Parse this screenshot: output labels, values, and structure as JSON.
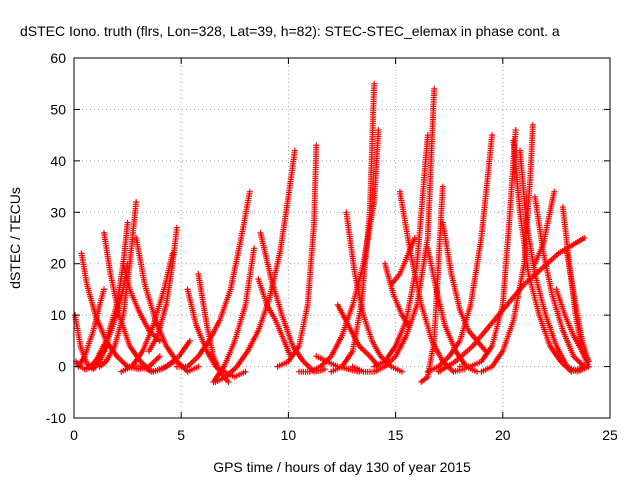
{
  "chart_data": {
    "type": "scatter",
    "title": "dSTEC Iono. truth (flrs, Lon=328, Lat=39, h=82): STEC-STEC_elemax in phase cont. a",
    "xlabel": "GPS time / hours of day 130 of year 2015",
    "ylabel": "dSTEC  / TECUs",
    "xlim": [
      0,
      25
    ],
    "ylim": [
      -10,
      60
    ],
    "xticks": [
      0,
      5,
      10,
      15,
      20,
      25
    ],
    "yticks": [
      -10,
      0,
      10,
      20,
      30,
      40,
      50,
      60
    ],
    "grid": true,
    "legend": "none",
    "marker": "plus",
    "color": "#ff0000",
    "series": [
      {
        "x": [
          0.05,
          0.3,
          0.6,
          0.9,
          1.2,
          1.5
        ],
        "y": [
          10,
          4,
          0.5,
          -0.5,
          1,
          4
        ]
      },
      {
        "x": [
          0.1,
          0.2,
          0.5,
          0.9,
          1.4,
          1.9,
          2.3,
          2.5
        ],
        "y": [
          1,
          0.3,
          -0.5,
          0,
          3,
          9,
          15,
          20
        ]
      },
      {
        "x": [
          0.35,
          0.6,
          1.0,
          1.5,
          2.0,
          2.5,
          3.0,
          3.5,
          4.0
        ],
        "y": [
          22,
          16,
          10,
          5,
          2,
          0,
          -0.5,
          0,
          2
        ]
      },
      {
        "x": [
          0.2,
          0.5,
          0.9,
          1.2,
          1.4
        ],
        "y": [
          0,
          2,
          7,
          12,
          15
        ]
      },
      {
        "x": [
          1.4,
          1.7,
          2.1,
          2.6,
          3.1,
          3.6,
          4.1,
          4.7
        ],
        "y": [
          26,
          18,
          10,
          4,
          1,
          -1,
          -0.5,
          1
        ]
      },
      {
        "x": [
          0.6,
          1.0,
          1.5,
          2.0,
          2.3,
          2.5
        ],
        "y": [
          -0.5,
          1,
          5,
          12,
          20,
          28
        ]
      },
      {
        "x": [
          1.2,
          1.5,
          1.9,
          2.3,
          2.6,
          2.9
        ],
        "y": [
          0,
          1,
          4,
          10,
          20,
          32
        ]
      },
      {
        "x": [
          2.9,
          3.3,
          3.8,
          4.3,
          4.8,
          5.3,
          5.8
        ],
        "y": [
          25,
          16,
          9,
          4,
          1,
          -1,
          0
        ]
      },
      {
        "x": [
          2.2,
          2.7,
          3.2,
          3.7,
          4.2,
          4.6
        ],
        "y": [
          -1,
          0,
          3,
          8,
          15,
          22
        ]
      },
      {
        "x": [
          2.6,
          3.1,
          3.7,
          4.3,
          4.9,
          5.4
        ],
        "y": [
          0,
          0,
          -1,
          0,
          2,
          5
        ]
      },
      {
        "x": [
          3.5,
          3.9,
          4.3,
          4.6,
          4.8
        ],
        "y": [
          3,
          6,
          12,
          20,
          27
        ]
      },
      {
        "x": [
          2.3,
          2.6,
          3.0,
          3.5,
          4.0
        ],
        "y": [
          20,
          15,
          11,
          7,
          5
        ]
      },
      {
        "x": [
          5.3,
          5.7,
          6.2,
          6.6,
          7.0,
          7.5,
          8.0
        ],
        "y": [
          15,
          8,
          3,
          0,
          -1,
          -2,
          -1
        ]
      },
      {
        "x": [
          5.8,
          6.2,
          6.5,
          6.8,
          7.2
        ],
        "y": [
          18,
          8,
          2,
          -1,
          -3
        ]
      },
      {
        "x": [
          4.8,
          5.3,
          5.8,
          6.3,
          6.8,
          7.3,
          7.8,
          8.2
        ],
        "y": [
          0,
          0,
          2,
          5,
          9,
          15,
          25,
          34
        ]
      },
      {
        "x": [
          6.6,
          7.1,
          7.6,
          8.1,
          8.6,
          9.1,
          9.6,
          10.0,
          10.3
        ],
        "y": [
          -3,
          -2,
          0,
          3,
          7,
          13,
          22,
          33,
          42
        ]
      },
      {
        "x": [
          6.5,
          7.0,
          7.5,
          8.0,
          8.4
        ],
        "y": [
          -3,
          0,
          5,
          12,
          23
        ]
      },
      {
        "x": [
          8.7,
          9.2,
          9.7,
          10.2,
          10.7,
          11.2,
          11.7
        ],
        "y": [
          26,
          17,
          10,
          4,
          1,
          -1,
          -0.5
        ]
      },
      {
        "x": [
          8.6,
          9.0,
          9.4,
          9.8,
          10.1
        ],
        "y": [
          17,
          12,
          9,
          5,
          2
        ]
      },
      {
        "x": [
          9.5,
          10.0,
          10.5,
          10.9,
          11.2,
          11.3
        ],
        "y": [
          0,
          1,
          4,
          12,
          28,
          43
        ]
      },
      {
        "x": [
          11.3,
          11.8,
          12.3,
          12.8,
          13.3
        ],
        "y": [
          2,
          1,
          0,
          -0.5,
          -1
        ]
      },
      {
        "x": [
          10.5,
          11.0,
          11.5,
          12.0,
          12.5,
          13.0,
          13.5,
          14.0,
          14.2
        ],
        "y": [
          -1,
          -1,
          0,
          2,
          6,
          12,
          20,
          32,
          46
        ]
      },
      {
        "x": [
          12.0,
          12.5,
          13.0,
          13.4,
          13.8,
          14.0
        ],
        "y": [
          -1,
          0,
          3,
          12,
          30,
          55
        ]
      },
      {
        "x": [
          12.7,
          13.1,
          13.5,
          13.9,
          14.3,
          14.8,
          15.3
        ],
        "y": [
          30,
          18,
          10,
          5,
          2,
          0,
          -1
        ]
      },
      {
        "x": [
          12.3,
          12.8,
          13.3,
          13.8,
          14.2
        ],
        "y": [
          12,
          8,
          4,
          2,
          0
        ]
      },
      {
        "x": [
          13.0,
          13.5,
          14.0,
          14.5,
          15.0,
          15.5,
          16.0,
          16.5,
          16.8
        ],
        "y": [
          0,
          -1,
          -1,
          0,
          2,
          6,
          12,
          25,
          54
        ]
      },
      {
        "x": [
          14.0,
          14.5,
          15.0,
          15.5,
          16.0,
          16.3,
          16.5
        ],
        "y": [
          0,
          1,
          4,
          9,
          20,
          35,
          45
        ]
      },
      {
        "x": [
          15.2,
          15.7,
          16.2,
          16.7,
          17.2,
          17.7,
          18.2
        ],
        "y": [
          34,
          22,
          12,
          5,
          1,
          -1,
          -0.5
        ]
      },
      {
        "x": [
          14.5,
          14.9,
          15.3,
          15.6
        ],
        "y": [
          20,
          14,
          10,
          8
        ]
      },
      {
        "x": [
          14.8,
          15.2,
          15.6,
          15.9
        ],
        "y": [
          16,
          18,
          22,
          25
        ]
      },
      {
        "x": [
          16.5,
          16.9,
          17.3,
          17.8,
          18.3,
          18.8
        ],
        "y": [
          23,
          15,
          8,
          3,
          0,
          -1
        ]
      },
      {
        "x": [
          16.2,
          16.5,
          16.8,
          17.0,
          17.2
        ],
        "y": [
          -3,
          -2,
          5,
          20,
          35
        ]
      },
      {
        "x": [
          17.2,
          17.6,
          18.0,
          18.4,
          18.8,
          19.2
        ],
        "y": [
          28,
          18,
          11,
          7,
          5,
          3
        ]
      },
      {
        "x": [
          16.5,
          17.0,
          17.5,
          18.0,
          18.5,
          19.0,
          19.5
        ],
        "y": [
          -1,
          0,
          2,
          5,
          12,
          25,
          45
        ]
      },
      {
        "x": [
          17.0,
          17.8,
          18.6,
          19.4,
          20.2,
          21.0,
          21.8,
          22.6,
          23.4,
          23.8
        ],
        "y": [
          -1,
          1,
          4,
          8,
          12,
          16,
          19,
          22,
          24,
          25
        ]
      },
      {
        "x": [
          18.0,
          18.5,
          19.0,
          19.5,
          20.0,
          20.3,
          20.6
        ],
        "y": [
          0,
          0,
          1,
          4,
          12,
          28,
          46
        ]
      },
      {
        "x": [
          19.0,
          19.5,
          20.0,
          20.5,
          21.0,
          21.3,
          21.4
        ],
        "y": [
          -1,
          0,
          3,
          9,
          20,
          38,
          47
        ]
      },
      {
        "x": [
          20.5,
          20.8,
          21.2,
          21.7,
          22.2,
          22.7,
          23.2,
          23.8
        ],
        "y": [
          44,
          30,
          18,
          10,
          4,
          1,
          -1,
          0
        ]
      },
      {
        "x": [
          20.8,
          21.1,
          21.5,
          22.0,
          22.5,
          23.0,
          23.5,
          24.0
        ],
        "y": [
          42,
          28,
          18,
          10,
          4,
          0,
          -1,
          0
        ]
      },
      {
        "x": [
          21.5,
          21.9,
          22.3,
          22.8,
          23.3,
          23.8
        ],
        "y": [
          33,
          22,
          14,
          7,
          2,
          0
        ]
      },
      {
        "x": [
          21.5,
          21.9,
          22.2,
          22.4
        ],
        "y": [
          20,
          24,
          30,
          34
        ]
      },
      {
        "x": [
          22.8,
          23.1,
          23.4,
          23.7,
          24.0
        ],
        "y": [
          31,
          20,
          10,
          3,
          0
        ]
      },
      {
        "x": [
          23.0,
          23.4,
          23.7,
          24.0
        ],
        "y": [
          22,
          12,
          5,
          1
        ]
      },
      {
        "x": [
          22.5,
          22.9,
          23.3,
          23.7,
          24.0
        ],
        "y": [
          15,
          10,
          6,
          3,
          1
        ]
      }
    ]
  }
}
